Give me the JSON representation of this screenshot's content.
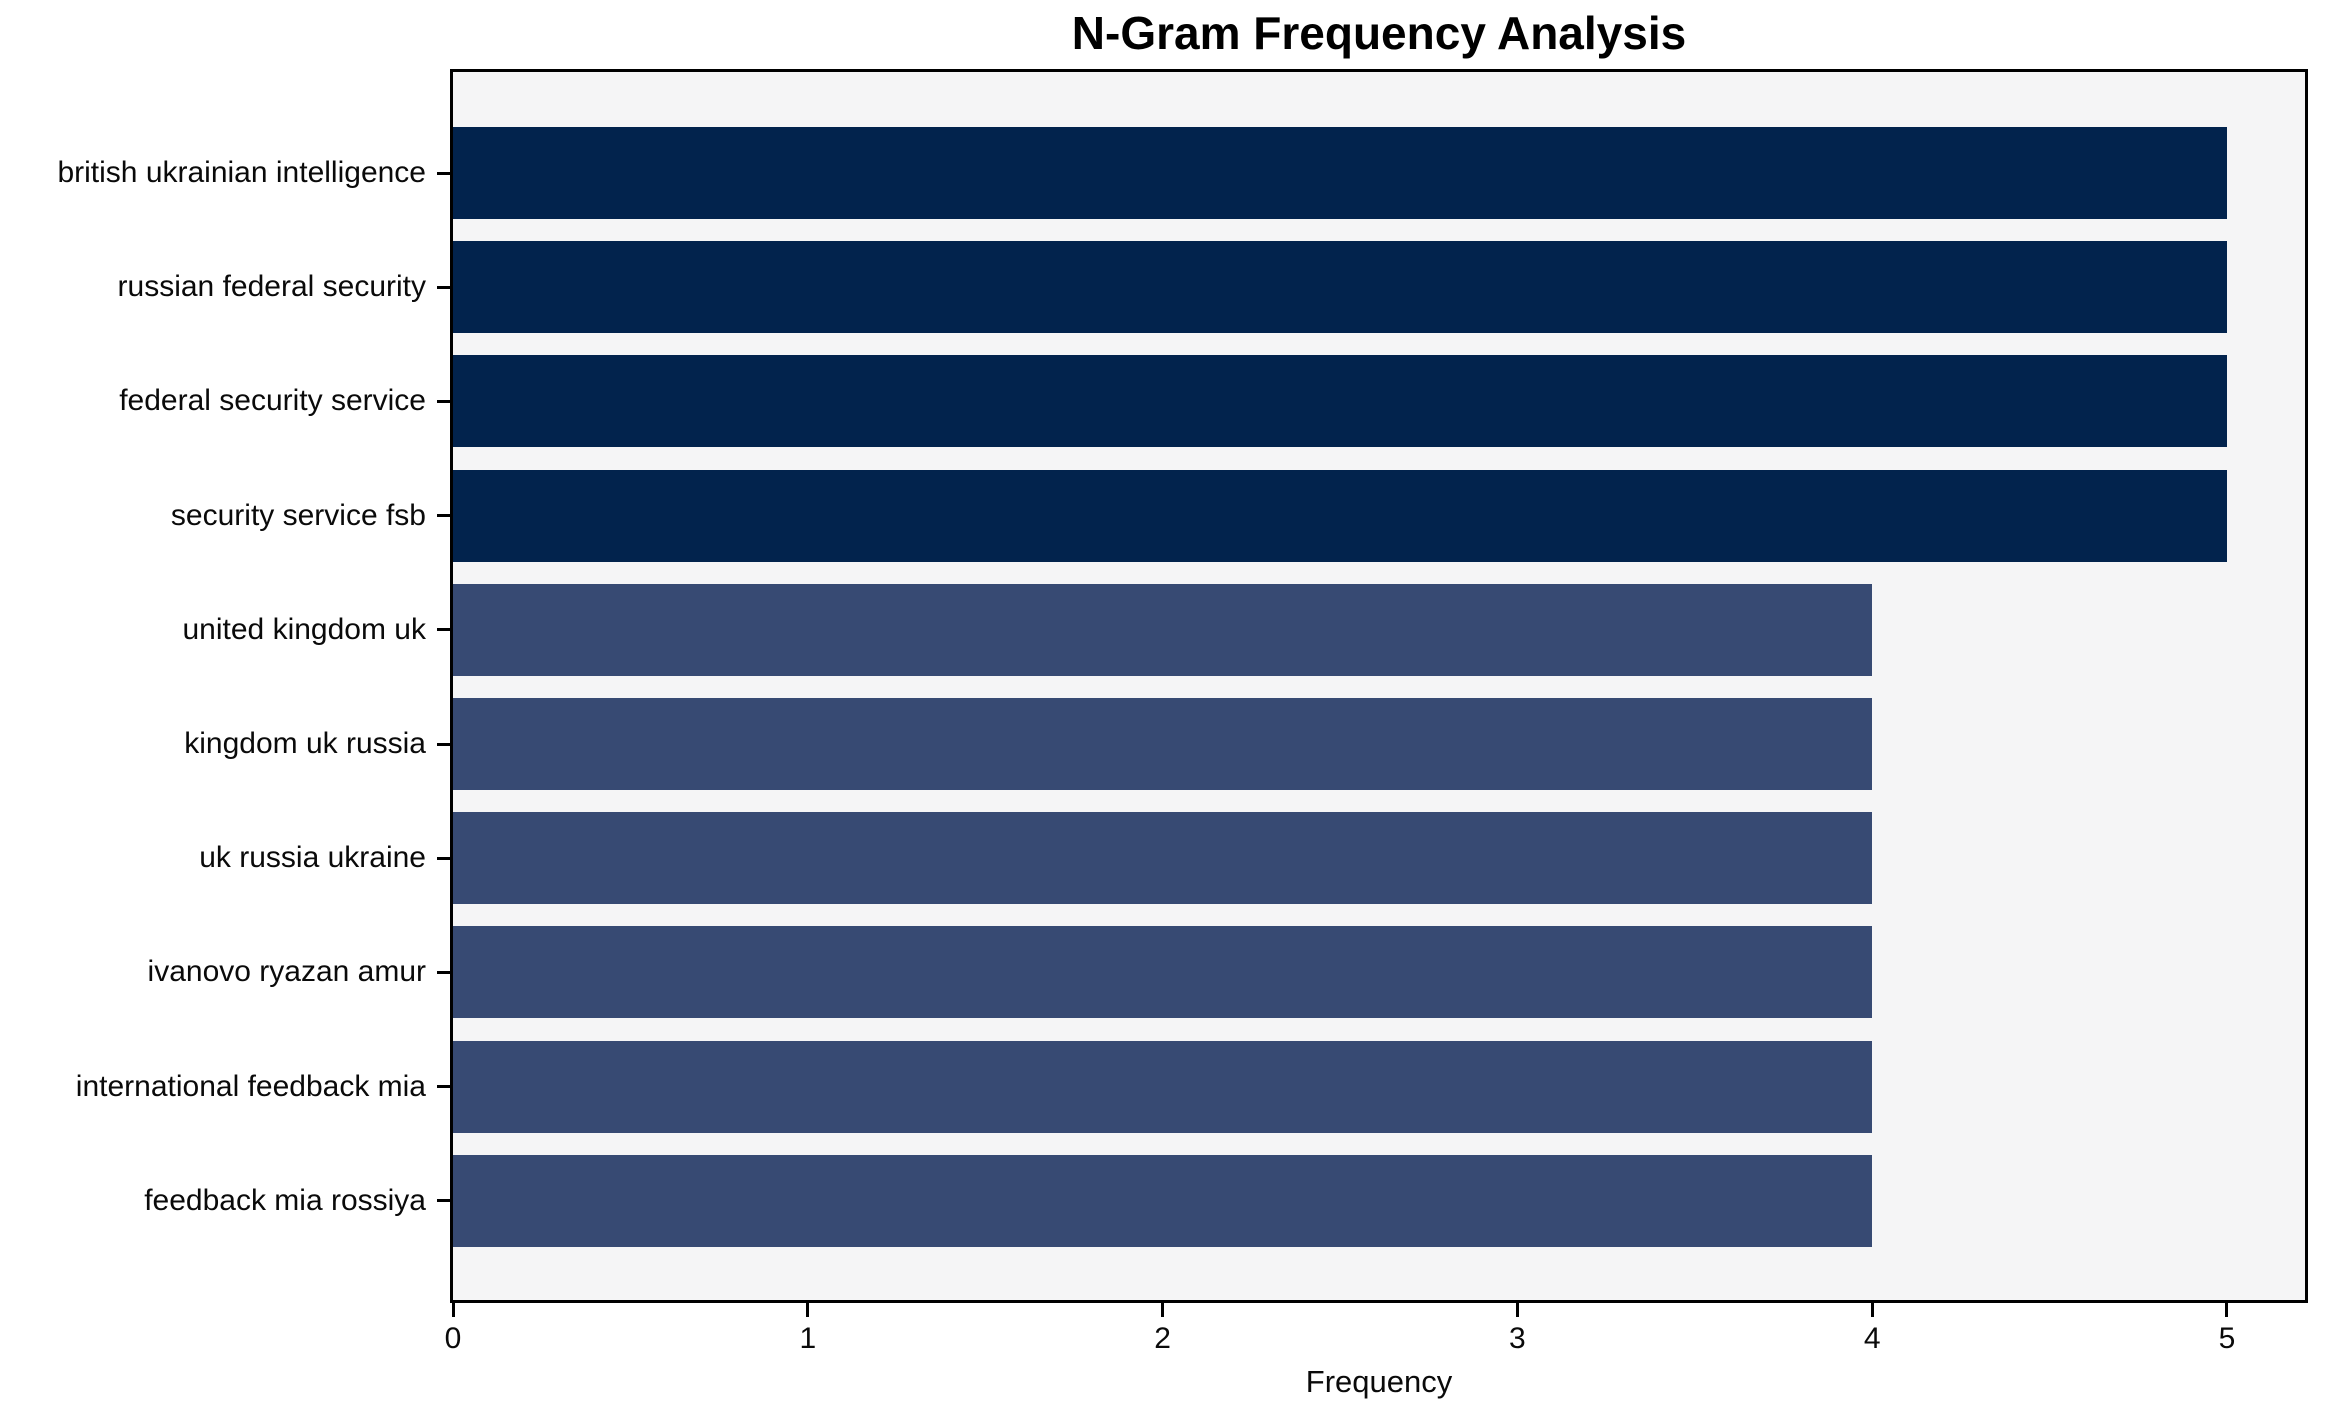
{
  "chart_data": {
    "type": "bar",
    "orientation": "horizontal",
    "title": "N-Gram Frequency Analysis",
    "xlabel": "Frequency",
    "ylabel": "",
    "categories": [
      "british ukrainian intelligence",
      "russian federal security",
      "federal security service",
      "security service fsb",
      "united kingdom uk",
      "kingdom uk russia",
      "uk russia ukraine",
      "ivanovo ryazan amur",
      "international feedback mia",
      "feedback mia rossiya"
    ],
    "values": [
      5,
      5,
      5,
      5,
      4,
      4,
      4,
      4,
      4,
      4
    ],
    "bar_colors": [
      "#02234d",
      "#02234d",
      "#02234d",
      "#02234d",
      "#374a73",
      "#374a73",
      "#374a73",
      "#374a73",
      "#374a73",
      "#374a73"
    ],
    "xticks": [
      0,
      1,
      2,
      3,
      4,
      5
    ],
    "xlim": [
      0,
      5.22
    ],
    "grid": false,
    "legend": "none",
    "colors": {
      "bar_value_5": "#02234d",
      "bar_value_4": "#374a73",
      "plot_background": "#f5f5f6",
      "figure_background": "#ffffff",
      "spine": "#000000",
      "text": "#000000"
    }
  }
}
